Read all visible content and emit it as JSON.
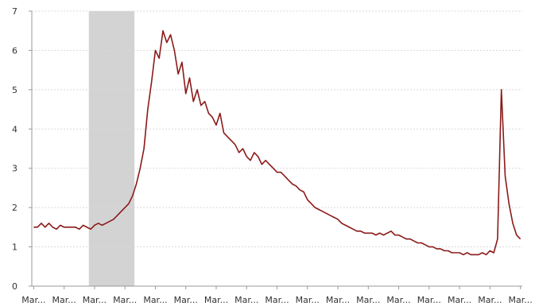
{
  "chart_data": {
    "type": "line",
    "title": "",
    "xlabel": "",
    "ylabel": "",
    "ylim": [
      0,
      7
    ],
    "yticks": [
      0,
      1,
      2,
      3,
      4,
      5,
      6,
      7
    ],
    "grid": "horizontal dashed",
    "colors": {
      "line": "#8b1a1a",
      "shade": "#d3d3d3",
      "grid": "#d9d9d9"
    },
    "shaded_regions": [
      {
        "x_start": 14.5,
        "x_end": 26.5
      }
    ],
    "xtick_labels": [
      "Mar...",
      "Mar...",
      "Mar...",
      "Mar...",
      "Mar...",
      "Mar...",
      "Mar...",
      "Mar...",
      "Mar...",
      "Mar...",
      "Mar...",
      "Mar...",
      "Mar...",
      "Mar...",
      "Mar...",
      "Mar...",
      "Mar..."
    ],
    "xtick_positions": [
      0,
      8,
      16,
      24,
      32,
      40,
      48,
      56,
      64,
      72,
      80,
      88,
      96,
      104,
      112,
      120,
      128
    ],
    "xlim": [
      -0.5,
      128.5
    ],
    "series": [
      {
        "values": [
          1.5,
          1.5,
          1.6,
          1.5,
          1.6,
          1.5,
          1.45,
          1.55,
          1.5,
          1.5,
          1.5,
          1.5,
          1.45,
          1.55,
          1.5,
          1.45,
          1.55,
          1.6,
          1.55,
          1.6,
          1.65,
          1.7,
          1.8,
          1.9,
          2.0,
          2.1,
          2.3,
          2.6,
          3.0,
          3.5,
          4.5,
          5.2,
          6.0,
          5.8,
          6.5,
          6.2,
          6.4,
          6.0,
          5.4,
          5.7,
          4.9,
          5.3,
          4.7,
          5.0,
          4.6,
          4.7,
          4.4,
          4.3,
          4.1,
          4.4,
          3.9,
          3.8,
          3.7,
          3.6,
          3.4,
          3.5,
          3.3,
          3.2,
          3.4,
          3.3,
          3.1,
          3.2,
          3.1,
          3.0,
          2.9,
          2.9,
          2.8,
          2.7,
          2.6,
          2.55,
          2.45,
          2.4,
          2.2,
          2.1,
          2.0,
          1.95,
          1.9,
          1.85,
          1.8,
          1.75,
          1.7,
          1.6,
          1.55,
          1.5,
          1.45,
          1.4,
          1.4,
          1.35,
          1.35,
          1.35,
          1.3,
          1.35,
          1.3,
          1.35,
          1.4,
          1.3,
          1.3,
          1.25,
          1.2,
          1.2,
          1.15,
          1.1,
          1.1,
          1.05,
          1.0,
          1.0,
          0.95,
          0.95,
          0.9,
          0.9,
          0.85,
          0.85,
          0.85,
          0.8,
          0.85,
          0.8,
          0.8,
          0.8,
          0.85,
          0.8,
          0.9,
          0.85,
          1.2,
          5.0,
          2.8,
          2.1,
          1.6,
          1.3,
          1.2
        ]
      }
    ]
  }
}
